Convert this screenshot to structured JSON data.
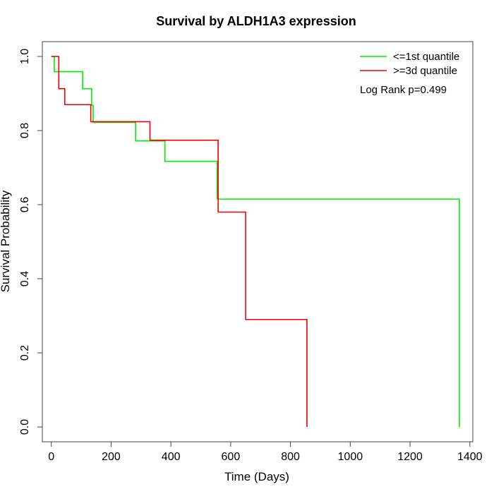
{
  "chart_data": {
    "type": "line",
    "subtype": "step",
    "title": "Survival by ALDH1A3 expression",
    "xlabel": "Time (Days)",
    "ylabel": "Survival Probability",
    "xlim": [
      -30,
      1410
    ],
    "ylim": [
      -0.04,
      1.04
    ],
    "xticks": [
      0,
      200,
      400,
      600,
      800,
      1000,
      1200,
      1400
    ],
    "xtick_labels": [
      "0",
      "200",
      "400",
      "600",
      "800",
      "1000",
      "1200",
      "1400"
    ],
    "yticks": [
      0.0,
      0.2,
      0.4,
      0.6,
      0.8,
      1.0
    ],
    "ytick_labels": [
      "0.0",
      "0.2",
      "0.4",
      "0.6",
      "0.8",
      "1.0"
    ],
    "grid": false,
    "legend_position": "top-right",
    "annotation": "Log Rank p=0.499",
    "series": [
      {
        "name": "<=1st quantile",
        "color": "#00ee00",
        "x": [
          0,
          10,
          105,
          135,
          140,
          282,
          380,
          555,
          1365,
          1365
        ],
        "y": [
          1.0,
          0.959,
          0.913,
          0.868,
          0.822,
          0.772,
          0.717,
          0.615,
          0.615,
          0.0
        ]
      },
      {
        "name": ">=3d quantile",
        "color": "#ee0000",
        "x": [
          0,
          25,
          45,
          132,
          330,
          558,
          650,
          855,
          855
        ],
        "y": [
          1.0,
          0.913,
          0.87,
          0.824,
          0.774,
          0.58,
          0.29,
          0.29,
          0.0
        ]
      }
    ]
  }
}
